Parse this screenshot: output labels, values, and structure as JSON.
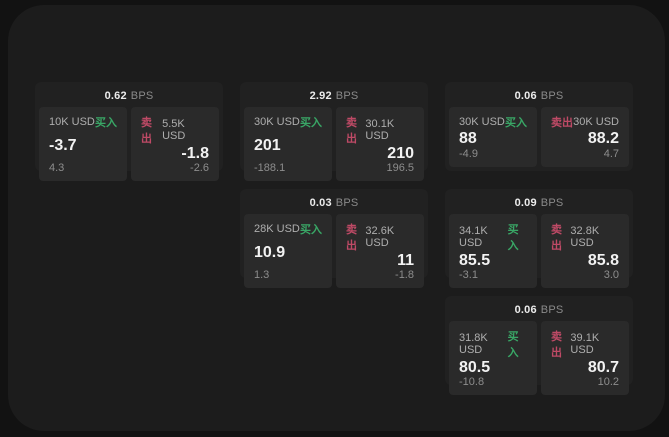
{
  "theme": {
    "page_bg": "#121212",
    "surface_bg": "#1c1c1c",
    "card_bg": "#212121",
    "panel_bg": "#2a2a2a",
    "buy_green": "#39a766",
    "sell_red": "#bf4a66"
  },
  "labels": {
    "bps_unit": "BPS",
    "buy": "买入",
    "sell": "卖出"
  },
  "cards": [
    {
      "col": 1,
      "bps": "0.62",
      "buy": {
        "amount": "10K USD",
        "value": "-3.7",
        "delta": "4.3"
      },
      "sell": {
        "amount": "5.5K USD",
        "value": "-1.8",
        "delta": "-2.6"
      }
    },
    {
      "col": 2,
      "bps": "2.92",
      "buy": {
        "amount": "30K USD",
        "value": "201",
        "delta": "-188.1"
      },
      "sell": {
        "amount": "30.1K USD",
        "value": "210",
        "delta": "196.5"
      }
    },
    {
      "col": 2,
      "bps": "0.03",
      "buy": {
        "amount": "28K USD",
        "value": "10.9",
        "delta": "1.3"
      },
      "sell": {
        "amount": "32.6K USD",
        "value": "11",
        "delta": "-1.8"
      }
    },
    {
      "col": 3,
      "bps": "0.06",
      "buy": {
        "amount": "30K USD",
        "value": "88",
        "delta": "-4.9"
      },
      "sell": {
        "amount": "30K USD",
        "value": "88.2",
        "delta": "4.7"
      }
    },
    {
      "col": 3,
      "bps": "0.09",
      "buy": {
        "amount": "34.1K USD",
        "value": "85.5",
        "delta": "-3.1"
      },
      "sell": {
        "amount": "32.8K USD",
        "value": "85.8",
        "delta": "3.0"
      }
    },
    {
      "col": 3,
      "bps": "0.06",
      "buy": {
        "amount": "31.8K USD",
        "value": "80.5",
        "delta": "-10.8"
      },
      "sell": {
        "amount": "39.1K USD",
        "value": "80.7",
        "delta": "10.2"
      }
    }
  ]
}
